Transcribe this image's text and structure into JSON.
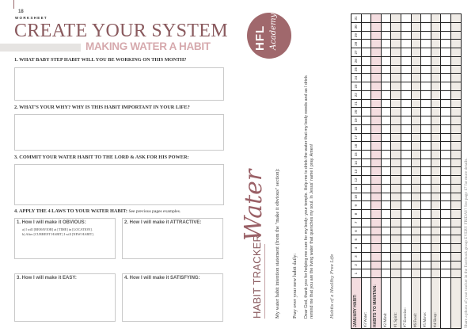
{
  "left_page": {
    "page_number": "18",
    "eyebrow": "WORKSHEET",
    "title": "CREATE YOUR SYSTEM",
    "subtitle": "MAKING WATER A HABIT",
    "questions": [
      "1. WHAT BABY STEP HABIT WILL YOU BE WORKING ON THIS MONTH?",
      "2. WHAT'S YOUR WHY? WHY IS THIS HABIT IMPORTANT IN YOUR LIFE?",
      "3. COMMIT YOUR WATER HABIT TO THE LORD & ASK FOR HIS POWER:"
    ],
    "laws_heading": "4. APPLY THE 4 LAWS TO YOUR WATER HABIT:",
    "laws_note": "See previous pages examples.",
    "laws": [
      {
        "label": "1. How I will make it OBVIOUS:",
        "lines": [
          "a) I will [BEHAVIOR] at [TIME] in [LOCATION].",
          "b) After [CURRENT HABIT] I will [NEW HABIT]."
        ]
      },
      {
        "label": "2. How I will make it ATTRACTIVE:"
      },
      {
        "label": "3. How I will make it EASY:"
      },
      {
        "label": "4. How I will make it SATISFYING:"
      }
    ]
  },
  "right_page": {
    "logo": {
      "main": "HFL",
      "script": "Academy",
      "color": "#a0686c"
    },
    "heading": "HABIT TRACKER",
    "heading_script": "Water",
    "intention_label": "My water habit intention statement (from the \"make it obvious\" section):",
    "pray_label": "Pray over your new habit daily:",
    "prayer": "Dear God, thank you for helping me care for my body- your temple. Help me to drink the water that my body needs and as I drink remind me that you are the living water that quenches my soul. In Jesus' name I pray. Amen!",
    "tagline": "Habits of a Healthy Free Life",
    "tracker": {
      "header_label": "JANUARY HABIT:",
      "days": [
        "1",
        "2",
        "3",
        "4",
        "5",
        "6",
        "7",
        "8",
        "9",
        "10",
        "11",
        "12",
        "13",
        "14",
        "15",
        "16",
        "17",
        "18",
        "19",
        "20",
        "21",
        "22",
        "23",
        "24",
        "25",
        "26",
        "27",
        "28",
        "29",
        "30",
        "31"
      ],
      "rows": [
        {
          "label": "#3 Water:",
          "style": "white"
        },
        {
          "label": "HABITS TO MAINTAIN:",
          "style": "pink"
        },
        {
          "label": "#2 Mind:",
          "style": "white"
        },
        {
          "label": "#1 Spirit:",
          "style": "beige"
        },
        {
          "label": "#7 Exercise:",
          "style": "white"
        },
        {
          "label": "#6 Food:",
          "style": "beige"
        },
        {
          "label": "#5 Move:",
          "style": "white"
        },
        {
          "label": "#4 Sleep:",
          "style": "beige"
        },
        {
          "label": "",
          "style": "white"
        },
        {
          "label": "",
          "style": "beige"
        }
      ]
    },
    "footer": "Share a photo of your tracker in the Facebook group EVERY FRIDAY! See page 17 for more details."
  },
  "colors": {
    "accent": "#8a5a5e",
    "pink_row": "#f4dde0",
    "beige_row": "#efebe6",
    "subtitle": "#d6a9ad"
  }
}
